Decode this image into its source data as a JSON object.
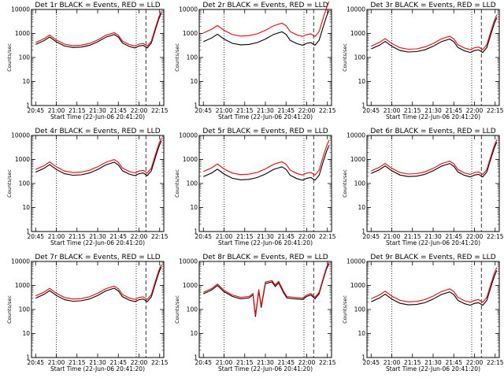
{
  "chart_data": [
    {
      "type": "line",
      "title": "Det 1r BLACK = Events, RED = LLD",
      "xlabel": "Start Time (22-Jun-06 20:41:20)",
      "ylabel": "Counts/sec",
      "ylim": [
        1,
        10000
      ],
      "yscale": "log",
      "x_ticks": [
        "20:45",
        "21:00",
        "21:15",
        "21:30",
        "21:45",
        "22:00",
        "22:15"
      ],
      "y_ticks": [
        "1",
        "10",
        "100",
        "1000",
        "10000"
      ],
      "dotted_markers": [
        "21:00",
        "21:58"
      ],
      "dashed_markers": [
        "22:05",
        "22:18"
      ],
      "series": [
        {
          "name": "Events",
          "color": "#000000",
          "shape": "std",
          "scale": 1.0
        },
        {
          "name": "LLD",
          "color": "#ff0000",
          "shape": "std",
          "scale": 1.2
        }
      ]
    },
    {
      "type": "line",
      "title": "Det 2r BLACK = Events, RED = LLD",
      "xlabel": "Start Time (22-Jun-06 20:41:20)",
      "ylabel": "Counts/sec",
      "ylim": [
        1,
        10000
      ],
      "yscale": "log",
      "x_ticks": [
        "20:45",
        "21:00",
        "21:15",
        "21:30",
        "21:45",
        "22:00",
        "22:15"
      ],
      "y_ticks": [
        "1",
        "10",
        "100",
        "1000",
        "10000"
      ],
      "dotted_markers": [
        "21:00",
        "21:58"
      ],
      "dashed_markers": [
        "22:05",
        "22:18"
      ],
      "series": [
        {
          "name": "Events",
          "color": "#000000",
          "shape": "std",
          "scale": 1.3
        },
        {
          "name": "LLD",
          "color": "#ff0000",
          "shape": "std",
          "scale": 3.0
        }
      ]
    },
    {
      "type": "line",
      "title": "Det 3r BLACK = Events, RED = LLD",
      "xlabel": "Start Time (22-Jun-06 20:41:20)",
      "ylabel": "Counts/sec",
      "ylim": [
        1,
        10000
      ],
      "yscale": "log",
      "x_ticks": [
        "20:45",
        "21:00",
        "21:15",
        "21:30",
        "21:45",
        "22:00",
        "22:15"
      ],
      "y_ticks": [
        "1",
        "10",
        "100",
        "1000",
        "10000"
      ],
      "dotted_markers": [
        "21:00",
        "21:58"
      ],
      "dashed_markers": [
        "22:05",
        "22:18"
      ],
      "series": [
        {
          "name": "Events",
          "color": "#000000",
          "shape": "std",
          "scale": 0.65
        },
        {
          "name": "LLD",
          "color": "#ff0000",
          "shape": "std",
          "scale": 0.85
        }
      ]
    },
    {
      "type": "line",
      "title": "Det 4r BLACK = Events, RED = LLD",
      "xlabel": "Start Time (22-Jun-06 20:41:20)",
      "ylabel": "Counts/sec",
      "ylim": [
        1,
        10000
      ],
      "yscale": "log",
      "x_ticks": [
        "20:45",
        "21:00",
        "21:15",
        "21:30",
        "21:45",
        "22:00",
        "22:15"
      ],
      "y_ticks": [
        "1",
        "10",
        "100",
        "1000",
        "10000"
      ],
      "dotted_markers": [
        "21:00",
        "21:58"
      ],
      "dashed_markers": [
        "22:05",
        "22:18"
      ],
      "series": [
        {
          "name": "Events",
          "color": "#000000",
          "shape": "std",
          "scale": 0.85
        },
        {
          "name": "LLD",
          "color": "#ff0000",
          "shape": "std",
          "scale": 1.1
        }
      ]
    },
    {
      "type": "line",
      "title": "Det 5r BLACK = Events, RED = LLD",
      "xlabel": "Start Time (22-Jun-06 20:41:20)",
      "ylabel": "Counts/sec",
      "ylim": [
        1,
        10000
      ],
      "yscale": "log",
      "x_ticks": [
        "20:45",
        "21:00",
        "21:15",
        "21:30",
        "21:45",
        "22:00",
        "22:15"
      ],
      "y_ticks": [
        "1",
        "10",
        "100",
        "1000",
        "10000"
      ],
      "dotted_markers": [
        "21:00",
        "21:58"
      ],
      "dashed_markers": [
        "22:05",
        "22:18"
      ],
      "series": [
        {
          "name": "Events",
          "color": "#000000",
          "shape": "std",
          "scale": 0.55
        },
        {
          "name": "LLD",
          "color": "#ff0000",
          "shape": "std",
          "scale": 0.9
        }
      ]
    },
    {
      "type": "line",
      "title": "Det 6r BLACK = Events, RED = LLD",
      "xlabel": "Start Time (22-Jun-06 20:41:20)",
      "ylabel": "Counts/sec",
      "ylim": [
        1,
        10000
      ],
      "yscale": "log",
      "x_ticks": [
        "20:45",
        "21:00",
        "21:15",
        "21:30",
        "21:45",
        "22:00",
        "22:15"
      ],
      "y_ticks": [
        "1",
        "10",
        "100",
        "1000",
        "10000"
      ],
      "dotted_markers": [
        "21:00",
        "21:58"
      ],
      "dashed_markers": [
        "22:05",
        "22:18"
      ],
      "series": [
        {
          "name": "Events",
          "color": "#000000",
          "shape": "std",
          "scale": 0.75
        },
        {
          "name": "LLD",
          "color": "#ff0000",
          "shape": "std",
          "scale": 0.95
        }
      ]
    },
    {
      "type": "line",
      "title": "Det 7r BLACK = Events, RED = LLD",
      "xlabel": "Start Time (22-Jun-06 20:41:20)",
      "ylabel": "Counts/sec",
      "ylim": [
        1,
        10000
      ],
      "yscale": "log",
      "x_ticks": [
        "20:45",
        "21:00",
        "21:15",
        "21:30",
        "21:45",
        "22:00",
        "22:15"
      ],
      "y_ticks": [
        "1",
        "10",
        "100",
        "1000",
        "10000"
      ],
      "dotted_markers": [
        "21:00",
        "21:58"
      ],
      "dashed_markers": [
        "22:05",
        "22:18"
      ],
      "series": [
        {
          "name": "Events",
          "color": "#000000",
          "shape": "std",
          "scale": 0.85
        },
        {
          "name": "LLD",
          "color": "#ff0000",
          "shape": "std",
          "scale": 1.05
        }
      ]
    },
    {
      "type": "line",
      "title": "Det 8r BLACK = Events, RED = LLD",
      "xlabel": "Start Time (22-Jun-06 20:41:20)",
      "ylabel": "Counts/sec",
      "ylim": [
        1,
        10000
      ],
      "yscale": "log",
      "x_ticks": [
        "20:45",
        "21:00",
        "21:15",
        "21:30",
        "21:45",
        "22:00",
        "22:15"
      ],
      "y_ticks": [
        "1",
        "10",
        "100",
        "1000",
        "10000"
      ],
      "dotted_markers": [
        "21:00",
        "21:58"
      ],
      "dashed_markers": [
        "22:05",
        "22:18"
      ],
      "series": [
        {
          "name": "Events",
          "color": "#000000",
          "shape": "det8",
          "scale": 1.0
        },
        {
          "name": "LLD",
          "color": "#ff0000",
          "shape": "det8",
          "scale": 1.15
        }
      ]
    },
    {
      "type": "line",
      "title": "Det 9r BLACK = Events, RED = LLD",
      "xlabel": "Start Time (22-Jun-06 20:41:20)",
      "ylabel": "Counts/sec",
      "ylim": [
        1,
        10000
      ],
      "yscale": "log",
      "x_ticks": [
        "20:45",
        "21:00",
        "21:15",
        "21:30",
        "21:45",
        "22:00",
        "22:15"
      ],
      "y_ticks": [
        "1",
        "10",
        "100",
        "1000",
        "10000"
      ],
      "dotted_markers": [
        "21:00",
        "21:58"
      ],
      "dashed_markers": [
        "22:05",
        "22:18"
      ],
      "series": [
        {
          "name": "Events",
          "color": "#000000",
          "shape": "std",
          "scale": 0.6
        },
        {
          "name": "LLD",
          "color": "#ff0000",
          "shape": "std",
          "scale": 0.8
        }
      ]
    }
  ],
  "base_profile": {
    "std": [
      [
        20.75,
        350
      ],
      [
        20.85,
        500
      ],
      [
        20.92,
        720
      ],
      [
        21.0,
        450
      ],
      [
        21.1,
        300
      ],
      [
        21.2,
        260
      ],
      [
        21.3,
        270
      ],
      [
        21.4,
        320
      ],
      [
        21.5,
        450
      ],
      [
        21.6,
        700
      ],
      [
        21.7,
        900
      ],
      [
        21.75,
        700
      ],
      [
        21.8,
        400
      ],
      [
        21.88,
        290
      ],
      [
        21.95,
        250
      ],
      [
        22.0,
        300
      ],
      [
        22.05,
        320
      ],
      [
        22.1,
        250
      ],
      [
        22.15,
        400
      ],
      [
        22.2,
        1500
      ],
      [
        22.24,
        4000
      ],
      [
        22.27,
        7000
      ]
    ],
    "det8": [
      [
        20.75,
        450
      ],
      [
        20.85,
        650
      ],
      [
        20.92,
        1000
      ],
      [
        21.0,
        550
      ],
      [
        21.1,
        350
      ],
      [
        21.2,
        280
      ],
      [
        21.3,
        300
      ],
      [
        21.35,
        400
      ],
      [
        21.38,
        50
      ],
      [
        21.42,
        600
      ],
      [
        21.45,
        120
      ],
      [
        21.5,
        1200
      ],
      [
        21.58,
        1400
      ],
      [
        21.62,
        900
      ],
      [
        21.66,
        1300
      ],
      [
        21.72,
        500
      ],
      [
        21.76,
        300
      ],
      [
        21.85,
        280
      ],
      [
        21.95,
        260
      ],
      [
        22.0,
        350
      ],
      [
        22.05,
        400
      ],
      [
        22.1,
        280
      ],
      [
        22.15,
        450
      ],
      [
        22.2,
        1800
      ],
      [
        22.24,
        5000
      ],
      [
        22.27,
        8000
      ]
    ]
  }
}
